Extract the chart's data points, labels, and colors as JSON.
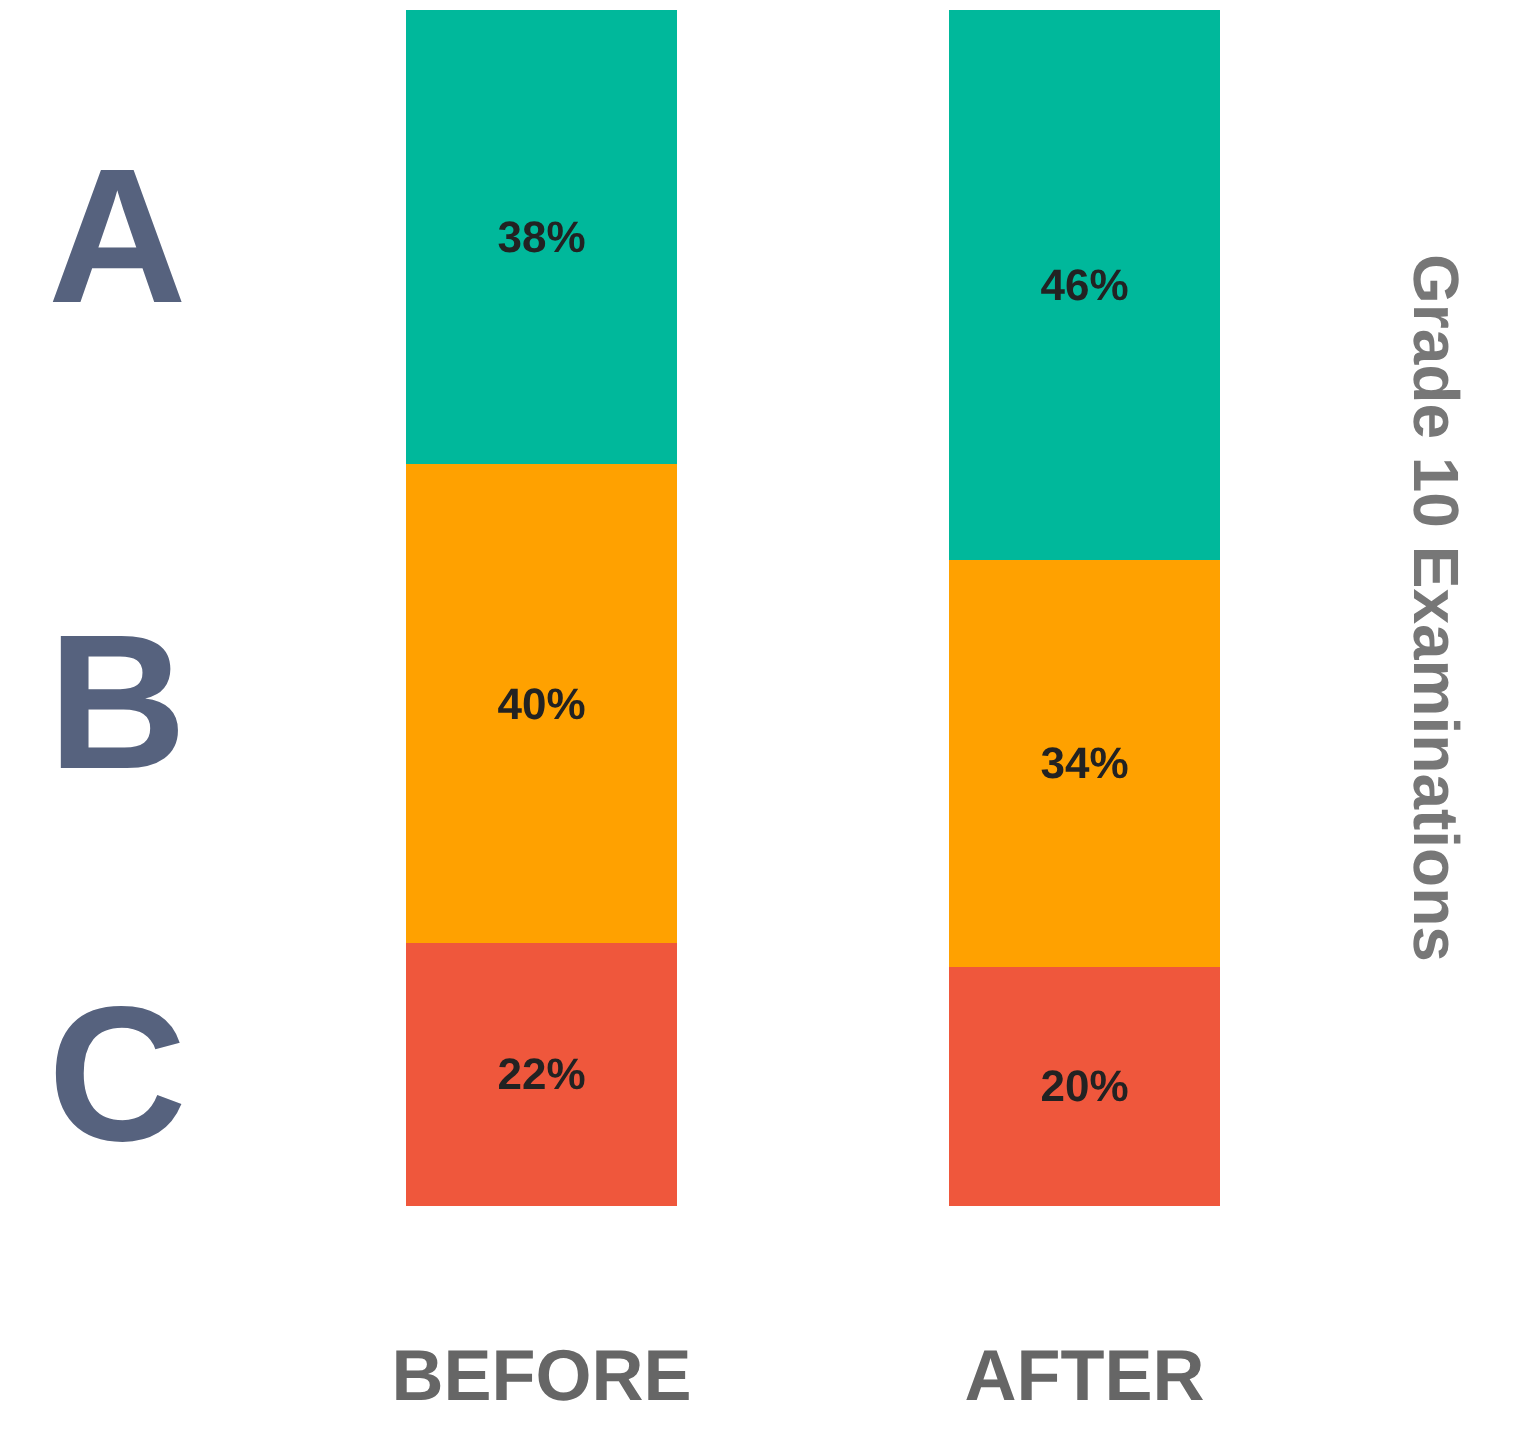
{
  "chart_data": {
    "type": "bar",
    "stacked": true,
    "ylabel": "Grade 10 Examinations",
    "categories": [
      "BEFORE",
      "AFTER"
    ],
    "ylim": [
      0,
      100
    ],
    "legend": false,
    "series": [
      {
        "name": "C",
        "color": "#ef573c",
        "values": [
          22,
          20
        ],
        "value_labels": [
          "22%",
          "20%"
        ]
      },
      {
        "name": "B",
        "color": "#ffa100",
        "values": [
          40,
          34
        ],
        "value_labels": [
          "40%",
          "34%"
        ]
      },
      {
        "name": "A",
        "color": "#00b89b",
        "values": [
          38,
          46
        ],
        "value_labels": [
          "38%",
          "46%"
        ]
      }
    ]
  }
}
